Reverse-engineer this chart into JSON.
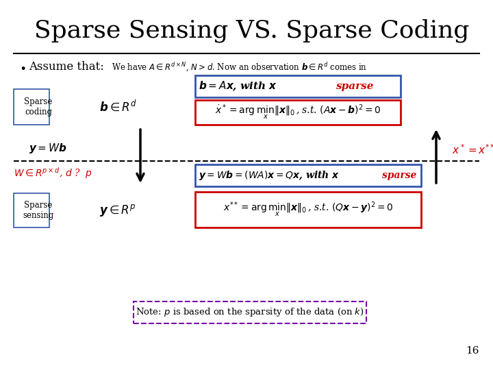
{
  "title": "Sparse Sensing VS. Sparse Coding",
  "background_color": "#ffffff",
  "slide_number": "16",
  "title_color": "#000000",
  "line_color": "#000000",
  "red_color": "#cc0000",
  "blue_border": "#3355aa",
  "purple_color": "#7700aa"
}
